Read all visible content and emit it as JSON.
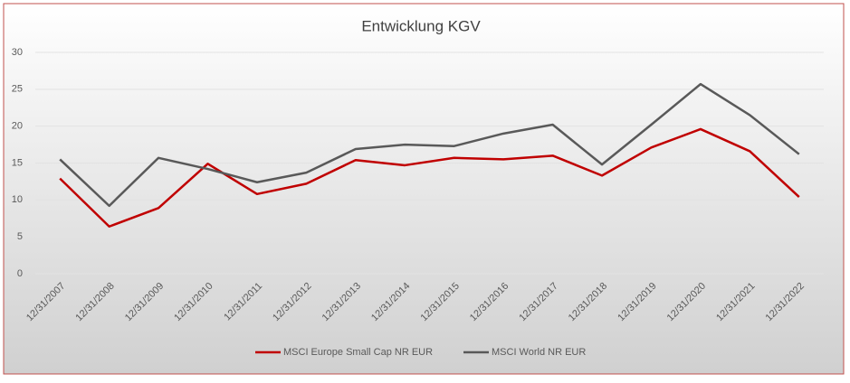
{
  "chart_data": {
    "type": "line",
    "title": "Entwicklung KGV",
    "categories": [
      "12/31/2007",
      "12/31/2008",
      "12/31/2009",
      "12/31/2010",
      "12/31/2011",
      "12/31/2012",
      "12/31/2013",
      "12/31/2014",
      "12/31/2015",
      "12/31/2016",
      "12/31/2017",
      "12/31/2018",
      "12/31/2019",
      "12/31/2020",
      "12/31/2021",
      "12/31/2022"
    ],
    "series": [
      {
        "name": "MSCI Europe Small Cap NR EUR",
        "color": "#c00000",
        "values": [
          12.9,
          6.4,
          8.9,
          14.9,
          10.8,
          12.2,
          15.4,
          14.7,
          15.7,
          15.5,
          16.0,
          13.3,
          17.1,
          19.6,
          16.6,
          10.4
        ]
      },
      {
        "name": "MSCI World NR EUR",
        "color": "#595959",
        "values": [
          15.5,
          9.2,
          15.7,
          14.2,
          12.4,
          13.7,
          16.9,
          17.5,
          17.3,
          19.0,
          20.2,
          14.8,
          20.2,
          25.7,
          21.5,
          16.2
        ]
      }
    ],
    "ylim": [
      0,
      30
    ],
    "yticks": [
      0,
      5,
      10,
      15,
      20,
      25,
      30
    ],
    "grid": true
  }
}
